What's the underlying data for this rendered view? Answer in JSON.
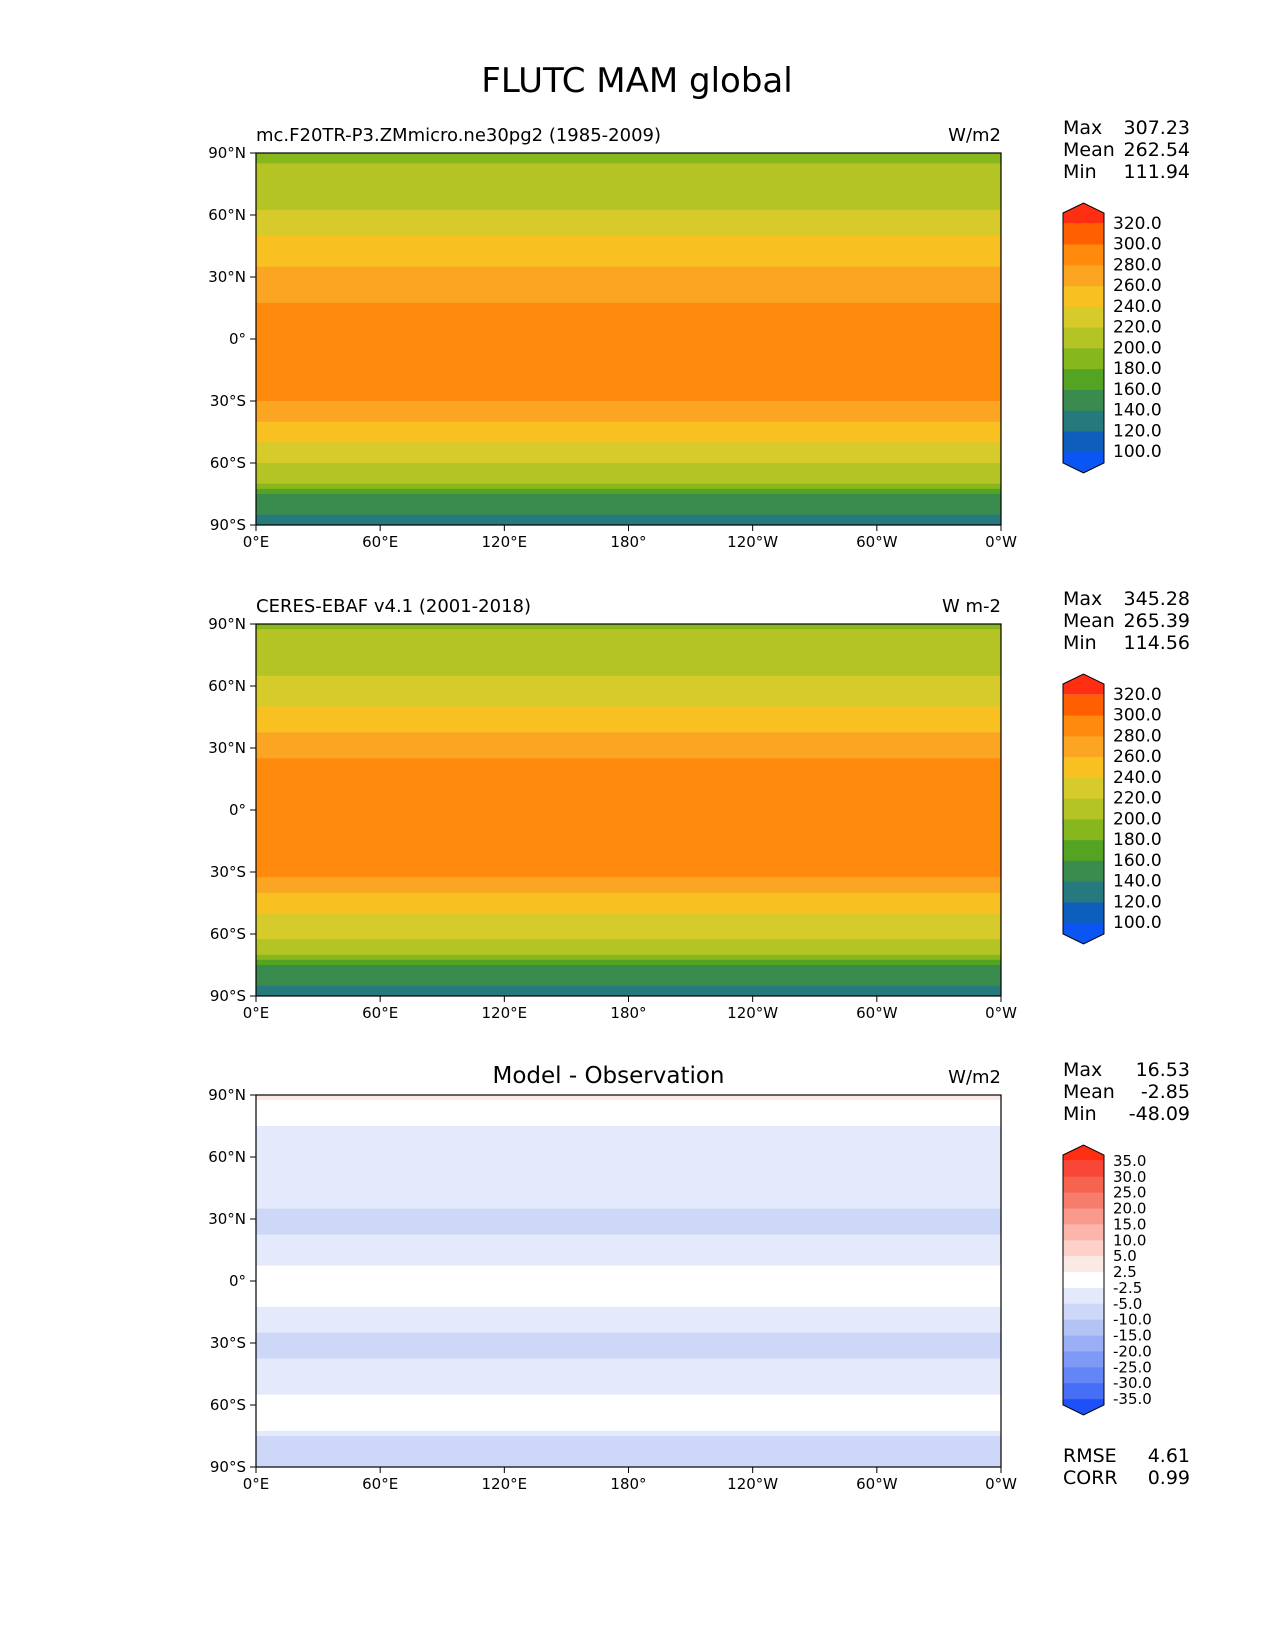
{
  "figure_title": "FLUTC MAM global",
  "chart_data": [
    {
      "type": "heatmap",
      "title": "mc.F20TR-P3.ZMmicro.ne30pg2 (1985-2009)",
      "units": "W/m2",
      "stats": [
        {
          "label": "Max",
          "value": "307.23"
        },
        {
          "label": "Mean",
          "value": "262.54"
        },
        {
          "label": "Min",
          "value": "111.94"
        }
      ],
      "xticks": [
        "0°E",
        "60°E",
        "120°E",
        "180°",
        "120°W",
        "60°W",
        "0°W"
      ],
      "yticks": [
        "90°N",
        "60°N",
        "30°N",
        "0°",
        "30°S",
        "60°S",
        "90°S"
      ],
      "xlim": [
        0,
        360
      ],
      "ylim": [
        -90,
        90
      ],
      "colorbar": {
        "levels": [
          "320.0",
          "300.0",
          "280.0",
          "260.0",
          "240.0",
          "220.0",
          "200.0",
          "180.0",
          "160.0",
          "140.0",
          "120.0",
          "100.0"
        ],
        "colors": [
          "#ff2e12",
          "#ff5f00",
          "#ff8a0c",
          "#fca523",
          "#f8c020",
          "#d7cb2c",
          "#b3c424",
          "#86b81d",
          "#55a322",
          "#3a8c4e",
          "#267a7d",
          "#0e5fbd",
          "#0b55f4"
        ],
        "extend": "both"
      },
      "zonal_profile": [
        {
          "lat": 90,
          "value": 195
        },
        {
          "lat": 75,
          "value": 212
        },
        {
          "lat": 60,
          "value": 222
        },
        {
          "lat": 45,
          "value": 246
        },
        {
          "lat": 30,
          "value": 268
        },
        {
          "lat": 15,
          "value": 283
        },
        {
          "lat": 0,
          "value": 281
        },
        {
          "lat": -15,
          "value": 286
        },
        {
          "lat": -30,
          "value": 282
        },
        {
          "lat": -45,
          "value": 248
        },
        {
          "lat": -60,
          "value": 222
        },
        {
          "lat": -68,
          "value": 205
        },
        {
          "lat": -75,
          "value": 160
        },
        {
          "lat": -90,
          "value": 128
        }
      ]
    },
    {
      "type": "heatmap",
      "title": "CERES-EBAF v4.1 (2001-2018)",
      "units": "W m-2",
      "stats": [
        {
          "label": "Max",
          "value": "345.28"
        },
        {
          "label": "Mean",
          "value": "265.39"
        },
        {
          "label": "Min",
          "value": "114.56"
        }
      ],
      "xticks": [
        "0°E",
        "60°E",
        "120°E",
        "180°",
        "120°W",
        "60°W",
        "0°W"
      ],
      "yticks": [
        "90°N",
        "60°N",
        "30°N",
        "0°",
        "30°S",
        "60°S",
        "90°S"
      ],
      "xlim": [
        0,
        360
      ],
      "ylim": [
        -90,
        90
      ],
      "colorbar": {
        "levels": [
          "320.0",
          "300.0",
          "280.0",
          "260.0",
          "240.0",
          "220.0",
          "200.0",
          "180.0",
          "160.0",
          "140.0",
          "120.0",
          "100.0"
        ],
        "colors": [
          "#ff2e12",
          "#ff5f00",
          "#ff8a0c",
          "#fca523",
          "#f8c020",
          "#d7cb2c",
          "#b3c424",
          "#86b81d",
          "#55a322",
          "#3a8c4e",
          "#267a7d",
          "#0e5fbd",
          "#0b55f4"
        ],
        "extend": "both"
      },
      "zonal_profile": [
        {
          "lat": 90,
          "value": 196
        },
        {
          "lat": 75,
          "value": 214
        },
        {
          "lat": 60,
          "value": 224
        },
        {
          "lat": 45,
          "value": 249
        },
        {
          "lat": 30,
          "value": 275
        },
        {
          "lat": 15,
          "value": 288
        },
        {
          "lat": 0,
          "value": 283
        },
        {
          "lat": -15,
          "value": 289
        },
        {
          "lat": -30,
          "value": 285
        },
        {
          "lat": -45,
          "value": 251
        },
        {
          "lat": -60,
          "value": 224
        },
        {
          "lat": -68,
          "value": 206
        },
        {
          "lat": -75,
          "value": 158
        },
        {
          "lat": -90,
          "value": 130
        }
      ]
    },
    {
      "type": "heatmap",
      "title": "Model - Observation",
      "units": "W/m2",
      "stats": [
        {
          "label": "Max",
          "value": "16.53"
        },
        {
          "label": "Mean",
          "value": "-2.85"
        },
        {
          "label": "Min",
          "value": "-48.09"
        }
      ],
      "metrics": [
        {
          "label": "RMSE",
          "value": "4.61"
        },
        {
          "label": "CORR",
          "value": "0.99"
        }
      ],
      "xticks": [
        "0°E",
        "60°E",
        "120°E",
        "180°",
        "120°W",
        "60°W",
        "0°W"
      ],
      "yticks": [
        "90°N",
        "60°N",
        "30°N",
        "0°",
        "30°S",
        "60°S",
        "90°S"
      ],
      "xlim": [
        0,
        360
      ],
      "ylim": [
        -90,
        90
      ],
      "colorbar": {
        "levels": [
          "35.0",
          "30.0",
          "25.0",
          "20.0",
          "15.0",
          "10.0",
          "5.0",
          "2.5",
          "-2.5",
          "-5.0",
          "-10.0",
          "-15.0",
          "-20.0",
          "-25.0",
          "-30.0",
          "-35.0"
        ],
        "colors": [
          "#ff2e12",
          "#f94737",
          "#f6634f",
          "#f67d6c",
          "#f8998b",
          "#fbb5ab",
          "#fdd1ca",
          "#fbe9e6",
          "#ffffff",
          "#e4eafb",
          "#cdd7f8",
          "#b3c3f6",
          "#9aaff6",
          "#7f9af6",
          "#6385f6",
          "#466ef7",
          "#1d50f7"
        ],
        "extend": "both"
      },
      "zonal_profile": [
        {
          "lat": 90,
          "value": 3
        },
        {
          "lat": 75,
          "value": -3
        },
        {
          "lat": 60,
          "value": -4
        },
        {
          "lat": 45,
          "value": -3
        },
        {
          "lat": 30,
          "value": -6
        },
        {
          "lat": 15,
          "value": -4
        },
        {
          "lat": 0,
          "value": -1
        },
        {
          "lat": -15,
          "value": -3
        },
        {
          "lat": -30,
          "value": -6
        },
        {
          "lat": -45,
          "value": -4
        },
        {
          "lat": -60,
          "value": -2
        },
        {
          "lat": -68,
          "value": 3
        },
        {
          "lat": -75,
          "value": -5
        },
        {
          "lat": -90,
          "value": -7
        }
      ]
    }
  ]
}
